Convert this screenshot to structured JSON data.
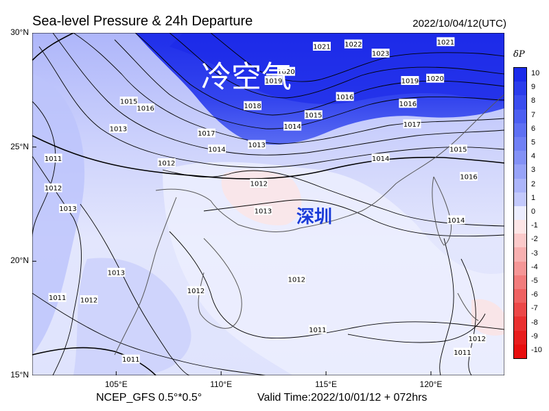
{
  "header": {
    "title": "Sea-level Pressure & 24h Departure",
    "datetime": "2022/10/04/12(UTC)"
  },
  "axes": {
    "lat_ticks": [
      "30°N",
      "25°N",
      "20°N",
      "15°N"
    ],
    "lon_ticks": [
      "105°E",
      "110°E",
      "115°E",
      "120°E"
    ],
    "lat_range": [
      15,
      30
    ],
    "lon_range": [
      101,
      123.5
    ]
  },
  "annotations": {
    "cold_air": "冷空气",
    "city": "深圳"
  },
  "footer": {
    "model": "NCEP_GFS 0.5°*0.5°",
    "valid": "Valid Time:2022/10/01/12 + 072hrs"
  },
  "legend": {
    "title": "δP",
    "labels": [
      "10",
      "9",
      "8",
      "7",
      "6",
      "5",
      "4",
      "3",
      "2",
      "1",
      "0",
      "-1",
      "-2",
      "-3",
      "-4",
      "-5",
      "-6",
      "-7",
      "-8",
      "-9",
      "-10"
    ],
    "colors": [
      "#1b2bea",
      "#2a3cec",
      "#3a4def",
      "#4c5ff1",
      "#5e70f3",
      "#7080f5",
      "#8391f6",
      "#97a3f8",
      "#acb5fa",
      "#c3c9fc",
      "#ecedfe",
      "#fde6e6",
      "#fbcaca",
      "#f8b0b0",
      "#f59696",
      "#f27c7c",
      "#ef6262",
      "#ec4848",
      "#e93030",
      "#e81d1d",
      "#e80e0e"
    ]
  },
  "contour_labels": [
    {
      "text": "1021",
      "lon": 114.8,
      "lat": 29.4
    },
    {
      "text": "1022",
      "lon": 116.3,
      "lat": 29.5
    },
    {
      "text": "1023",
      "lon": 117.6,
      "lat": 29.1
    },
    {
      "text": "1021",
      "lon": 120.7,
      "lat": 29.6
    },
    {
      "text": "1020",
      "lon": 113.1,
      "lat": 28.3
    },
    {
      "text": "1019",
      "lon": 112.5,
      "lat": 27.9
    },
    {
      "text": "1019",
      "lon": 119.0,
      "lat": 27.9
    },
    {
      "text": "1020",
      "lon": 120.2,
      "lat": 28.0
    },
    {
      "text": "1018",
      "lon": 111.5,
      "lat": 26.8
    },
    {
      "text": "1016",
      "lon": 115.9,
      "lat": 27.2
    },
    {
      "text": "1016",
      "lon": 118.9,
      "lat": 26.9
    },
    {
      "text": "1017",
      "lon": 119.1,
      "lat": 26.0
    },
    {
      "text": "1015",
      "lon": 105.6,
      "lat": 27.0
    },
    {
      "text": "1016",
      "lon": 106.4,
      "lat": 26.7
    },
    {
      "text": "1015",
      "lon": 114.4,
      "lat": 26.4
    },
    {
      "text": "1014",
      "lon": 113.4,
      "lat": 25.9
    },
    {
      "text": "1013",
      "lon": 105.1,
      "lat": 25.8
    },
    {
      "text": "1017",
      "lon": 109.3,
      "lat": 25.6
    },
    {
      "text": "1014",
      "lon": 109.8,
      "lat": 24.9
    },
    {
      "text": "1013",
      "lon": 111.7,
      "lat": 25.1
    },
    {
      "text": "1011",
      "lon": 102.0,
      "lat": 24.5
    },
    {
      "text": "1012",
      "lon": 107.4,
      "lat": 24.3
    },
    {
      "text": "1014",
      "lon": 117.6,
      "lat": 24.5
    },
    {
      "text": "1015",
      "lon": 121.3,
      "lat": 24.9
    },
    {
      "text": "1016",
      "lon": 121.8,
      "lat": 23.7
    },
    {
      "text": "1012",
      "lon": 102.0,
      "lat": 23.2
    },
    {
      "text": "1012",
      "lon": 111.8,
      "lat": 23.4
    },
    {
      "text": "1013",
      "lon": 102.7,
      "lat": 22.3
    },
    {
      "text": "1013",
      "lon": 112.0,
      "lat": 22.2
    },
    {
      "text": "1014",
      "lon": 121.2,
      "lat": 21.8
    },
    {
      "text": "1013",
      "lon": 105.0,
      "lat": 19.5
    },
    {
      "text": "1012",
      "lon": 108.8,
      "lat": 18.7
    },
    {
      "text": "1012",
      "lon": 113.6,
      "lat": 19.2
    },
    {
      "text": "1011",
      "lon": 102.2,
      "lat": 18.4
    },
    {
      "text": "1012",
      "lon": 103.7,
      "lat": 18.3
    },
    {
      "text": "1011",
      "lon": 114.6,
      "lat": 17.0
    },
    {
      "text": "1011",
      "lon": 121.5,
      "lat": 16.0
    },
    {
      "text": "1012",
      "lon": 122.2,
      "lat": 16.6
    },
    {
      "text": "1011",
      "lon": 105.7,
      "lat": 15.7
    }
  ]
}
